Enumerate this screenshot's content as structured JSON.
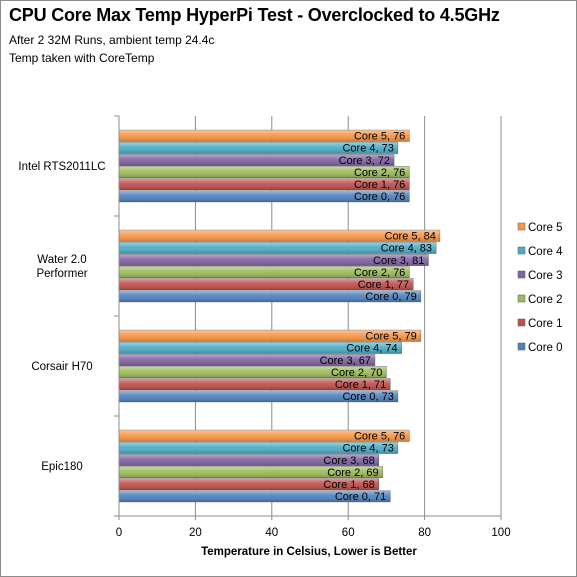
{
  "chart_data": {
    "type": "bar",
    "orientation": "horizontal",
    "title": "CPU Core Max Temp HyperPi Test - Overclocked to 4.5GHz",
    "subtitle_lines": [
      "After 2 32M  Runs, ambient temp 24.4c",
      "Temp taken with CoreTemp"
    ],
    "xlabel": "Temperature in Celsius,  Lower is Better",
    "ylabel": "",
    "xlim": [
      0,
      100
    ],
    "x_ticks": [
      "0",
      "20",
      "40",
      "60",
      "80",
      "100"
    ],
    "grid": true,
    "legend_position": "right",
    "categories": [
      "Intel RTS2011LC",
      "Water 2.0 Performer",
      "Corsair H70",
      "Epic180"
    ],
    "category_labels": [
      [
        "Intel RTS2011LC"
      ],
      [
        "Water 2.0",
        "Performer"
      ],
      [
        "Corsair H70"
      ],
      [
        "Epic180"
      ]
    ],
    "series": [
      {
        "name": "Core 5",
        "color": "#f79646",
        "values": [
          76,
          84,
          79,
          76
        ]
      },
      {
        "name": "Core 4",
        "color": "#4bacc6",
        "values": [
          73,
          83,
          74,
          73
        ]
      },
      {
        "name": "Core 3",
        "color": "#8064a2",
        "values": [
          72,
          81,
          67,
          68
        ]
      },
      {
        "name": "Core 2",
        "color": "#9bbb59",
        "values": [
          76,
          76,
          70,
          69
        ]
      },
      {
        "name": "Core 1",
        "color": "#c0504d",
        "values": [
          76,
          77,
          71,
          68
        ]
      },
      {
        "name": "Core 0",
        "color": "#4f81bd",
        "values": [
          76,
          79,
          73,
          71
        ]
      }
    ]
  }
}
